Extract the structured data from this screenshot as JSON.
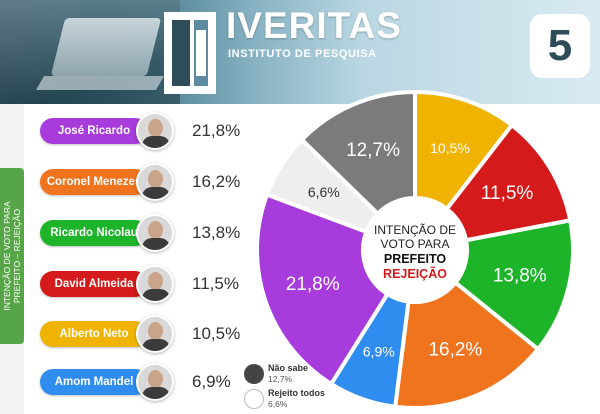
{
  "header": {
    "brand_name": "IVERITAS",
    "brand_subtitle": "INSTITUTO DE PESQUISA",
    "page_number": "5"
  },
  "sidebar": {
    "line1": "INTENÇÃO DE VOTO PARA",
    "line2": "PREFEITO – REJEIÇÃO"
  },
  "candidates": [
    {
      "name": "José Ricardo",
      "value_label": "21,8%",
      "color": "#a83bdc"
    },
    {
      "name": "Coronel Menezes",
      "value_label": "16,2%",
      "color": "#f0731e"
    },
    {
      "name": "Ricardo Nicolau",
      "value_label": "13,8%",
      "color": "#1eb42a"
    },
    {
      "name": "David Almeida",
      "value_label": "11,5%",
      "color": "#d41a1a"
    },
    {
      "name": "Alberto Neto",
      "value_label": "10,5%",
      "color": "#f0b400"
    },
    {
      "name": "Amom Mandel",
      "value_label": "6,9%",
      "color": "#2f8df0"
    }
  ],
  "center_label": {
    "line1": "INTENÇÃO DE",
    "line2": "VOTO PARA",
    "line3": "PREFEITO",
    "line4": "REJEIÇÃO"
  },
  "legend": [
    {
      "label": "Não sabe",
      "value": "12,7%",
      "color": "#7b7b7b"
    },
    {
      "label": "Rejeito todos",
      "value": "6,6%",
      "color": "#eeeeee"
    }
  ],
  "chart_data": {
    "type": "pie",
    "title": "INTENÇÃO DE VOTO PARA PREFEITO REJEIÇÃO",
    "slices": [
      {
        "label": "Alberto Neto",
        "value": 10.5,
        "display": "10,5%",
        "color": "#f0b400"
      },
      {
        "label": "David Almeida",
        "value": 11.5,
        "display": "11,5%",
        "color": "#d41a1a"
      },
      {
        "label": "Ricardo Nicolau",
        "value": 13.8,
        "display": "13,8%",
        "color": "#1eb42a"
      },
      {
        "label": "Coronel Menezes",
        "value": 16.2,
        "display": "16,2%",
        "color": "#f0731e"
      },
      {
        "label": "Amom Mandel",
        "value": 6.9,
        "display": "6,9%",
        "color": "#2f8df0"
      },
      {
        "label": "José Ricardo",
        "value": 21.8,
        "display": "21,8%",
        "color": "#a83bdc"
      },
      {
        "label": "Rejeito todos",
        "value": 6.6,
        "display": "6,6%",
        "color": "#eeeeee"
      },
      {
        "label": "Não sabe",
        "value": 12.7,
        "display": "12,7%",
        "color": "#7b7b7b"
      }
    ]
  }
}
